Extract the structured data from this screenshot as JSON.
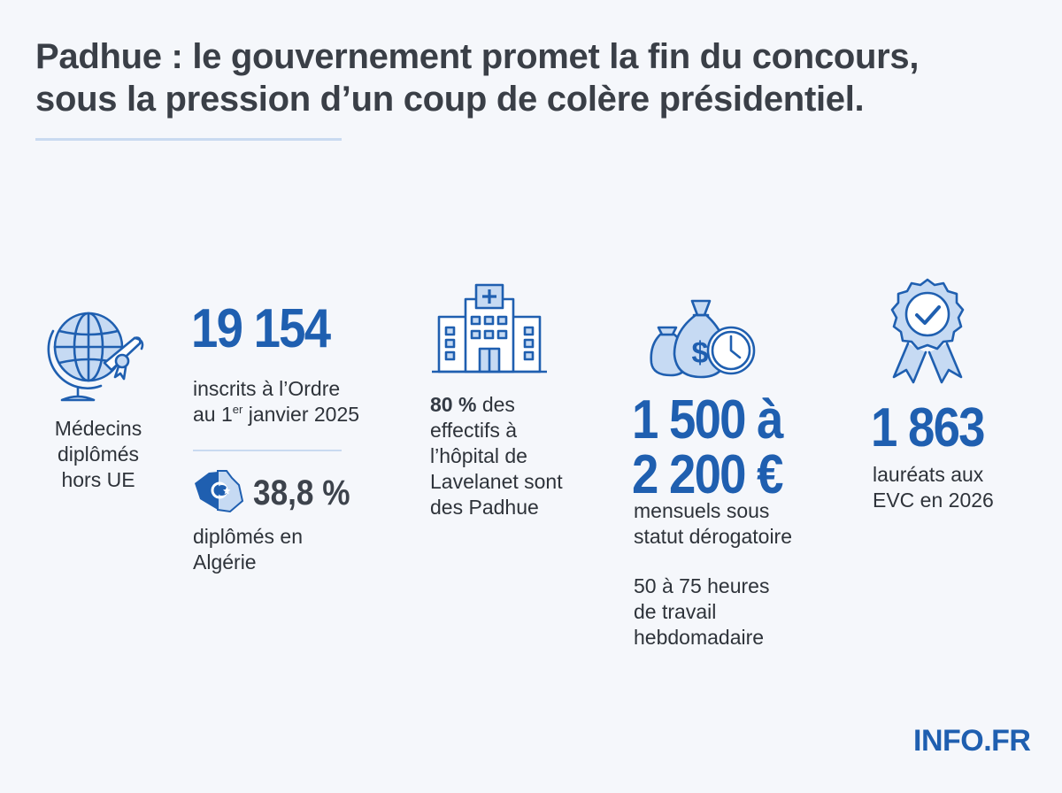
{
  "title_line1": "Padhue : le gouvernement promet la fin du concours,",
  "title_line2": "sous la pression d’un coup de colère présidentiel.",
  "col1": {
    "icon": "globe-diploma-icon",
    "line1": "Médecins",
    "line2": "diplômés",
    "line3": "hors UE"
  },
  "col2": {
    "stat": "19 154",
    "desc_line1": "inscrits à l’Ordre",
    "desc_line2_prefix": "au 1",
    "desc_line2_sup": "er",
    "desc_line2_suffix": " janvier 2025",
    "flag_icon": "algeria-flag-map-icon",
    "sub_stat": "38,8 %",
    "sub_line1": "diplômés en",
    "sub_line2": "Algérie"
  },
  "col3": {
    "icon": "hospital-icon",
    "percent": "80 %",
    "line1_suffix": " des",
    "line2": "effectifs à",
    "line3": "l’hôpital de",
    "line4": "Lavelanet sont",
    "line5": "des Padhue"
  },
  "col4": {
    "icon": "money-bags-clock-icon",
    "stat_line1": "1 500 à",
    "stat_line2": "2 200 €",
    "desc_line1": "mensuels sous",
    "desc_line2": "statut dérogatoire",
    "hours_line1": "50 à 75 heures",
    "hours_line2": "de travail",
    "hours_line3": "hebdomadaire"
  },
  "col5": {
    "icon": "award-badge-icon",
    "stat": "1 863",
    "line1": "lauréats aux",
    "line2": "EVC en 2026"
  },
  "logo": "INFO.FR",
  "colors": {
    "accent": "#1f5fb0",
    "icon_fill": "#c6daf3",
    "title": "#3a3f47"
  }
}
